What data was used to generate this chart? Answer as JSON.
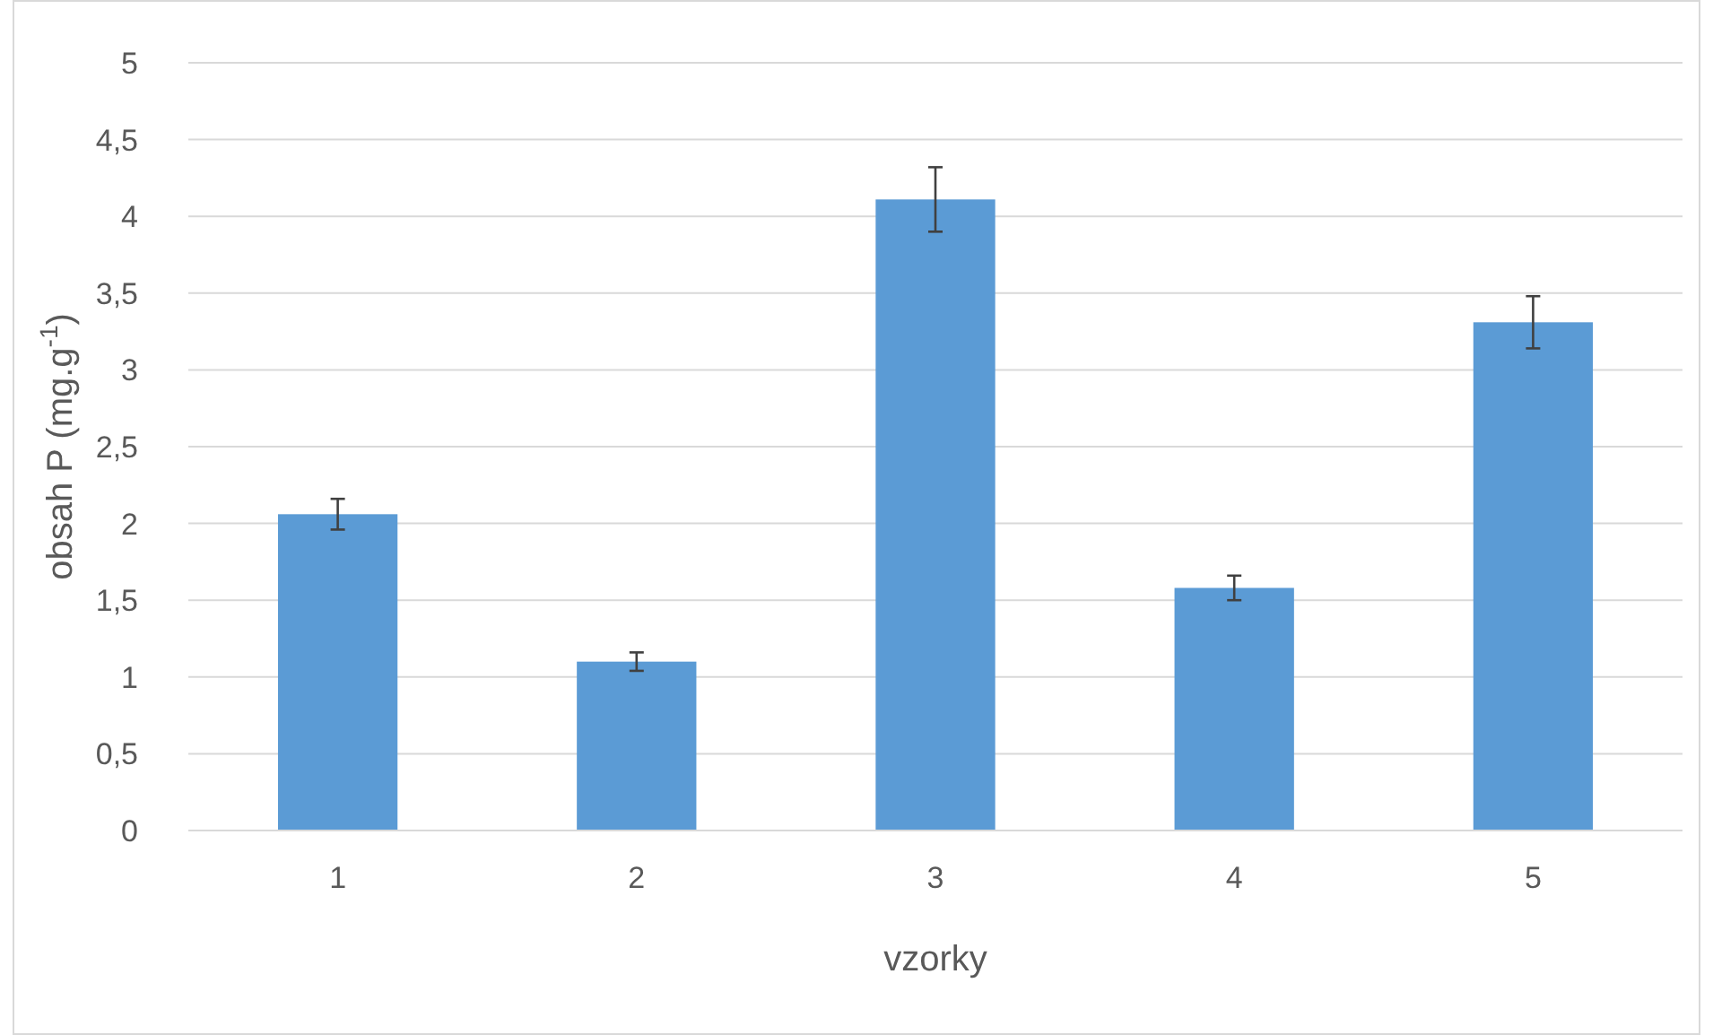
{
  "chart_data": {
    "type": "bar",
    "xlabel": "vzorky",
    "ylabel": "obsah P (mg.g$^{-1}$)",
    "categories": [
      "1",
      "2",
      "3",
      "4",
      "5"
    ],
    "values": [
      2.06,
      1.1,
      4.11,
      1.58,
      3.31
    ],
    "errors": [
      0.1,
      0.06,
      0.21,
      0.08,
      0.17
    ],
    "color": "#5b9bd5",
    "ylim": [
      0,
      5
    ],
    "yticks": [
      0,
      {
        "value": 0.5,
        "label": "0,5"
      },
      1,
      {
        "value": 1.5,
        "label": "1,5"
      },
      2,
      {
        "value": 2.5,
        "label": "2,5"
      },
      3,
      {
        "value": 3.5,
        "label": "3,5"
      },
      4,
      {
        "value": 4.5,
        "label": "4,5"
      },
      5
    ],
    "grid": "y"
  }
}
